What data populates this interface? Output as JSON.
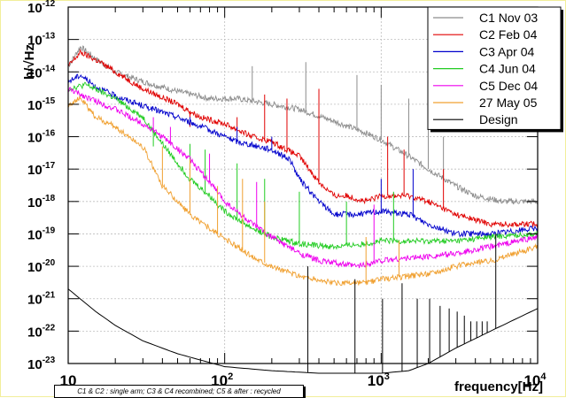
{
  "chart_data": {
    "type": "line",
    "xscale": "log",
    "yscale": "log",
    "xlim": [
      10,
      10000
    ],
    "ylim": [
      1e-23,
      1e-12
    ],
    "xticks": [
      {
        "v": 10,
        "base": "10",
        "exp": ""
      },
      {
        "v": 100,
        "base": "10",
        "exp": "2"
      },
      {
        "v": 1000,
        "base": "10",
        "exp": "3"
      },
      {
        "v": 10000,
        "base": "10",
        "exp": "4"
      }
    ],
    "yticks": [
      {
        "v": 1e-12,
        "base": "10",
        "exp": "-12"
      },
      {
        "v": 1e-13,
        "base": "10",
        "exp": "-13"
      },
      {
        "v": 1e-14,
        "base": "10",
        "exp": "-14"
      },
      {
        "v": 1e-15,
        "base": "10",
        "exp": "-15"
      },
      {
        "v": 1e-16,
        "base": "10",
        "exp": "-16"
      },
      {
        "v": 1e-17,
        "base": "10",
        "exp": "-17"
      },
      {
        "v": 1e-18,
        "base": "10",
        "exp": "-18"
      },
      {
        "v": 1e-19,
        "base": "10",
        "exp": "-19"
      },
      {
        "v": 1e-20,
        "base": "10",
        "exp": "-20"
      },
      {
        "v": 1e-21,
        "base": "10",
        "exp": "-21"
      },
      {
        "v": 1e-22,
        "base": "10",
        "exp": "-22"
      },
      {
        "v": 1e-23,
        "base": "10",
        "exp": "-23"
      }
    ],
    "xlabel": "frequency[Hz]",
    "ylabel": "h/√Hz",
    "grid": true,
    "legend_position": "top-right",
    "series": [
      {
        "name": "C1 Nov 03",
        "color": "#8c8c8c",
        "points": [
          [
            10,
            1.5e-14
          ],
          [
            12,
            6e-14
          ],
          [
            15,
            2.5e-14
          ],
          [
            20,
            1e-14
          ],
          [
            30,
            5e-15
          ],
          [
            50,
            2.5e-15
          ],
          [
            80,
            1.5e-15
          ],
          [
            120,
            1.5e-15
          ],
          [
            200,
            1e-15
          ],
          [
            300,
            7e-16
          ],
          [
            500,
            3e-16
          ],
          [
            800,
            1.3e-16
          ],
          [
            1000,
            8e-17
          ],
          [
            1500,
            2.5e-17
          ],
          [
            2000,
            1e-17
          ],
          [
            3000,
            3e-18
          ],
          [
            4000,
            1.5e-18
          ],
          [
            6000,
            1e-18
          ],
          [
            10000,
            1e-18
          ]
        ],
        "lines": [
          [
            150,
            1.5e-14
          ],
          [
            330,
            2e-14
          ],
          [
            700,
            8e-15
          ],
          [
            1000,
            4e-15
          ],
          [
            1500,
            1.5e-15
          ],
          [
            2000,
            3e-16
          ],
          [
            2500,
            1e-16
          ]
        ]
      },
      {
        "name": "C2 Feb 04",
        "color": "#e00000",
        "points": [
          [
            10,
            1.5e-14
          ],
          [
            12,
            4e-14
          ],
          [
            16,
            2e-14
          ],
          [
            20,
            1e-14
          ],
          [
            30,
            3e-15
          ],
          [
            50,
            1e-15
          ],
          [
            70,
            4e-16
          ],
          [
            100,
            2.5e-16
          ],
          [
            150,
            1e-16
          ],
          [
            200,
            7e-17
          ],
          [
            300,
            2.5e-17
          ],
          [
            400,
            4e-18
          ],
          [
            500,
            1.5e-18
          ],
          [
            600,
            1.5e-18
          ],
          [
            800,
            1e-18
          ],
          [
            1000,
            1.5e-18
          ],
          [
            1500,
            1.5e-18
          ],
          [
            2000,
            1e-18
          ],
          [
            3000,
            4e-19
          ],
          [
            5000,
            2e-19
          ],
          [
            10000,
            2e-19
          ]
        ],
        "lines": [
          [
            60,
            2e-16
          ],
          [
            120,
            4e-16
          ],
          [
            180,
            2e-15
          ],
          [
            250,
            1.5e-15
          ],
          [
            400,
            3e-15
          ],
          [
            1100,
            1e-16
          ],
          [
            1400,
            4e-17
          ],
          [
            2500,
            1e-17
          ]
        ]
      },
      {
        "name": "C3 Apr 04",
        "color": "#0000cc",
        "points": [
          [
            10,
            5e-15
          ],
          [
            12,
            8e-15
          ],
          [
            15,
            3.5e-15
          ],
          [
            20,
            1.8e-15
          ],
          [
            30,
            9e-16
          ],
          [
            50,
            4e-16
          ],
          [
            80,
            1.6e-16
          ],
          [
            120,
            7e-17
          ],
          [
            200,
            4e-17
          ],
          [
            260,
            2e-17
          ],
          [
            300,
            5e-18
          ],
          [
            400,
            1e-18
          ],
          [
            500,
            4e-19
          ],
          [
            700,
            4e-19
          ],
          [
            1000,
            5e-19
          ],
          [
            1500,
            4e-19
          ],
          [
            2000,
            2e-19
          ],
          [
            3000,
            1e-19
          ],
          [
            5000,
            1e-19
          ],
          [
            10000,
            1.5e-19
          ]
        ],
        "lines": [
          [
            60,
            4e-16
          ],
          [
            120,
            2e-16
          ],
          [
            200,
            1e-16
          ],
          [
            1000,
            5e-18
          ],
          [
            1600,
            1e-17
          ]
        ]
      },
      {
        "name": "C4 Jun 04",
        "color": "#22cc22",
        "points": [
          [
            10,
            3e-15
          ],
          [
            13,
            4e-15
          ],
          [
            20,
            1.5e-15
          ],
          [
            30,
            4e-16
          ],
          [
            40,
            6e-17
          ],
          [
            60,
            5e-18
          ],
          [
            80,
            1.5e-18
          ],
          [
            100,
            5e-19
          ],
          [
            150,
            1.5e-19
          ],
          [
            200,
            8e-20
          ],
          [
            300,
            5e-20
          ],
          [
            500,
            4e-20
          ],
          [
            800,
            5e-20
          ],
          [
            1000,
            6e-20
          ],
          [
            2000,
            6e-20
          ],
          [
            3000,
            6e-20
          ],
          [
            5000,
            8e-20
          ],
          [
            10000,
            1e-19
          ]
        ],
        "lines": [
          [
            35,
            5e-17
          ],
          [
            60,
            6e-17
          ],
          [
            75,
            4e-17
          ],
          [
            120,
            1.5e-17
          ],
          [
            180,
            5e-18
          ],
          [
            300,
            2e-18
          ],
          [
            600,
            1e-18
          ],
          [
            1200,
            2e-18
          ]
        ]
      },
      {
        "name": "C5 Dec 04",
        "color": "#ee00ee",
        "points": [
          [
            10,
            3e-15
          ],
          [
            12,
            2e-15
          ],
          [
            20,
            7e-16
          ],
          [
            30,
            2.5e-16
          ],
          [
            40,
            1e-16
          ],
          [
            60,
            2e-17
          ],
          [
            80,
            4e-18
          ],
          [
            100,
            1e-18
          ],
          [
            150,
            2e-19
          ],
          [
            200,
            8e-20
          ],
          [
            300,
            2.5e-20
          ],
          [
            400,
            1.5e-20
          ],
          [
            700,
            1e-20
          ],
          [
            1000,
            1.5e-20
          ],
          [
            1500,
            1.8e-20
          ],
          [
            2000,
            2e-20
          ],
          [
            3000,
            2.5e-20
          ],
          [
            5000,
            4e-20
          ],
          [
            10000,
            8e-20
          ]
        ],
        "lines": [
          [
            35,
            4e-16
          ],
          [
            45,
            2e-16
          ],
          [
            80,
            3e-17
          ],
          [
            160,
            4e-18
          ],
          [
            900,
            8e-19
          ]
        ]
      },
      {
        "name": "27 May 05",
        "color": "#f0a030",
        "points": [
          [
            10,
            1e-15
          ],
          [
            12,
            1.5e-15
          ],
          [
            15,
            4e-16
          ],
          [
            20,
            2e-16
          ],
          [
            30,
            5e-17
          ],
          [
            40,
            3e-18
          ],
          [
            50,
            1e-18
          ],
          [
            60,
            4e-19
          ],
          [
            80,
            1.5e-19
          ],
          [
            100,
            7e-20
          ],
          [
            150,
            2e-20
          ],
          [
            200,
            1e-20
          ],
          [
            300,
            5e-21
          ],
          [
            500,
            3e-21
          ],
          [
            800,
            3e-21
          ],
          [
            1000,
            4e-21
          ],
          [
            1500,
            5e-21
          ],
          [
            2000,
            6e-21
          ],
          [
            3000,
            1e-20
          ],
          [
            5000,
            1.5e-20
          ],
          [
            10000,
            4e-20
          ]
        ],
        "lines": [
          [
            40,
            5e-17
          ],
          [
            60,
            2e-17
          ],
          [
            90,
            3e-18
          ],
          [
            130,
            5e-18
          ],
          [
            180,
            1e-18
          ],
          [
            800,
            8e-20
          ],
          [
            1300,
            6e-20
          ]
        ]
      },
      {
        "name": "Design",
        "color": "#000000",
        "points": [
          [
            10,
            2e-21
          ],
          [
            15,
            4e-22
          ],
          [
            20,
            1.5e-22
          ],
          [
            30,
            5e-23
          ],
          [
            50,
            2e-23
          ],
          [
            100,
            8e-24
          ],
          [
            200,
            6e-24
          ],
          [
            400,
            5e-24
          ],
          [
            700,
            5e-24
          ],
          [
            1000,
            5e-24
          ],
          [
            1500,
            6e-24
          ],
          [
            2000,
            1e-23
          ],
          [
            3000,
            3e-23
          ],
          [
            5000,
            1e-22
          ],
          [
            10000,
            5e-22
          ]
        ],
        "lines": [
          [
            340,
            1e-20
          ],
          [
            680,
            4e-21
          ],
          [
            1020,
            1e-21
          ],
          [
            1360,
            3e-21
          ],
          [
            1700,
            1e-21
          ],
          [
            2040,
            1e-21
          ],
          [
            2380,
            6e-22
          ],
          [
            2720,
            5e-22
          ],
          [
            3060,
            4e-22
          ],
          [
            3400,
            3e-22
          ],
          [
            3740,
            2e-22
          ],
          [
            4080,
            2e-22
          ],
          [
            4420,
            2e-22
          ],
          [
            4760,
            2e-22
          ],
          [
            5400,
            1e-19
          ],
          [
            10000,
            1e-19
          ]
        ]
      }
    ]
  },
  "footnote": "C1 & C2 : single arm; C3 & C4 recombined; C5 & after : recycled"
}
